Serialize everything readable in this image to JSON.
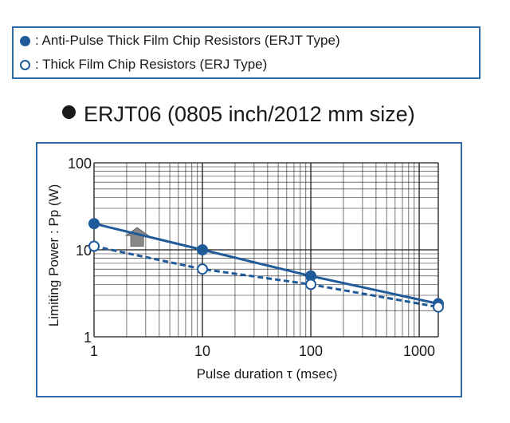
{
  "legend": {
    "filled_label": "● : Anti-Pulse Thick Film Chip Resistors (ERJT Type)",
    "open_label": "○ : Thick Film Chip Resistors (ERJ Type)",
    "filled_text": ": Anti-Pulse Thick Film Chip Resistors (ERJT Type)",
    "open_text": ": Thick Film Chip Resistors (ERJ Type)"
  },
  "title": {
    "model": "ERJT06",
    "size": " (0805 inch/2012 mm size)"
  },
  "colors": {
    "accent": "#1f5a9a",
    "frame": "#2f6aa8",
    "grid": "#1a1a1a",
    "arrow": "#888888"
  },
  "chart_data": {
    "type": "line",
    "xlabel": "Pulse duration τ (msec)",
    "ylabel": "Limiting Power : Pp (W)",
    "xscale": "log",
    "yscale": "log",
    "xlim": [
      1,
      1500
    ],
    "ylim": [
      1,
      100
    ],
    "x_ticks": [
      "1",
      "10",
      "100",
      "1000"
    ],
    "y_ticks": [
      "1",
      "10",
      "100"
    ],
    "grid": true,
    "series": [
      {
        "name": "ERJT Type",
        "style": "solid",
        "marker": "filled",
        "points": [
          [
            1,
            20
          ],
          [
            10,
            10
          ],
          [
            100,
            5
          ],
          [
            1500,
            2.4
          ]
        ]
      },
      {
        "name": "ERJ Type",
        "style": "dashed",
        "marker": "open",
        "points": [
          [
            1,
            11
          ],
          [
            10,
            6
          ],
          [
            100,
            4
          ],
          [
            1500,
            2.2
          ]
        ]
      }
    ],
    "annotation": {
      "type": "up-arrow",
      "at_x": 2.5,
      "from_y": 11,
      "to_y": 18
    }
  }
}
